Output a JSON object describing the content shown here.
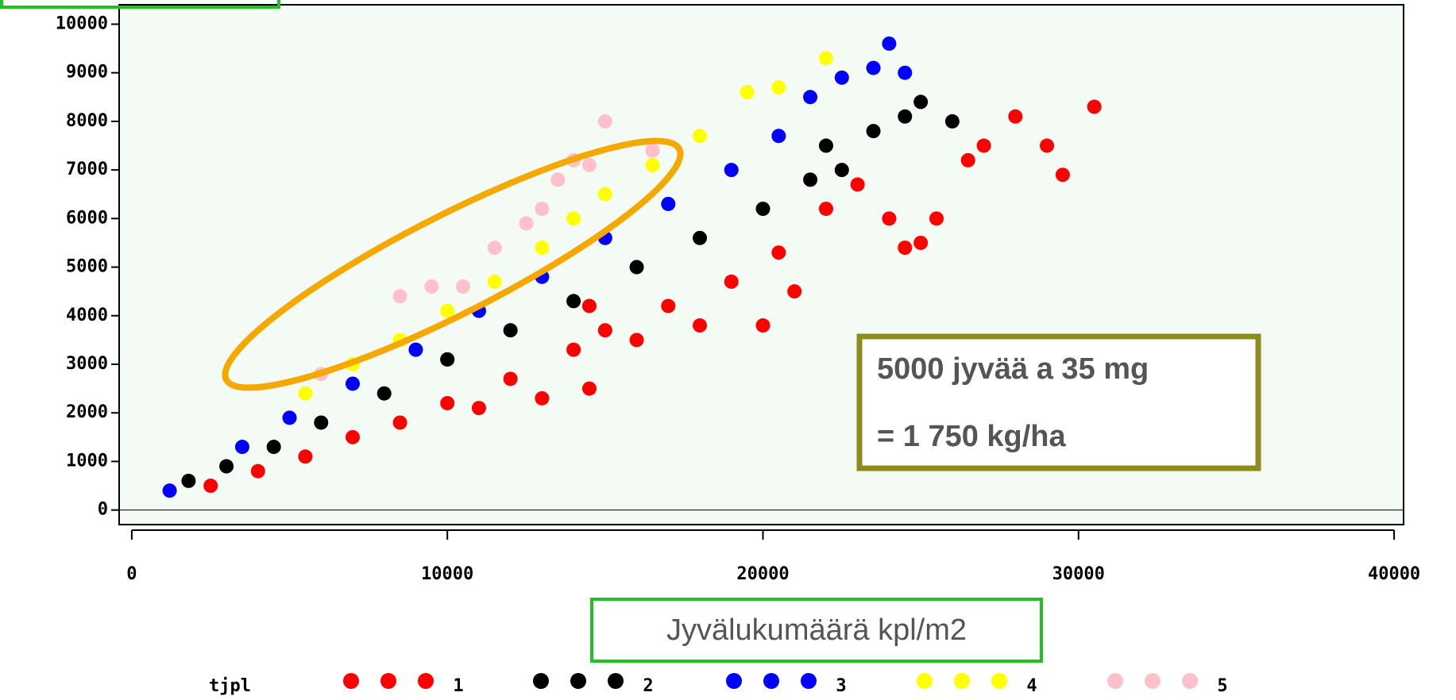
{
  "chart_data": {
    "type": "scatter",
    "x_label": "Jyvälukumäärä kpl/m2",
    "legend_title": "tjpl",
    "annotation": [
      "5000 jyvää a 35 mg",
      "= 1 750 kg/ha"
    ],
    "xlim": [
      -400,
      40300
    ],
    "ylim": [
      -300,
      10400
    ],
    "xticks": [
      0,
      10000,
      20000,
      30000,
      40000
    ],
    "yticks": [
      0,
      1000,
      2000,
      3000,
      4000,
      5000,
      6000,
      7000,
      8000,
      9000,
      10000
    ],
    "series": [
      {
        "name": "1",
        "color": "#ff0000",
        "x": [
          2500,
          4000,
          5500,
          7000,
          8500,
          10000,
          11000,
          12000,
          13000,
          14000,
          14500,
          15000,
          16000,
          17000,
          18000,
          19000,
          20000,
          20500,
          21000,
          22000,
          23000,
          24000,
          24500,
          25000,
          25500,
          26500,
          27000,
          28000,
          29000,
          29500,
          30500,
          14500,
          10000
        ],
        "values": [
          500,
          800,
          1100,
          1500,
          1800,
          2200,
          2100,
          2700,
          2300,
          3300,
          2500,
          3700,
          3500,
          4200,
          3800,
          4700,
          3800,
          5300,
          4500,
          6200,
          6700,
          6000,
          5400,
          5500,
          6000,
          7200,
          7500,
          8100,
          7500,
          6900,
          8300,
          4200,
          3100
        ]
      },
      {
        "name": "2",
        "color": "#000000",
        "x": [
          1800,
          3000,
          4500,
          6000,
          8000,
          10000,
          12000,
          14000,
          16000,
          18000,
          20000,
          21500,
          22500,
          23500,
          24500,
          25000,
          26000,
          22000
        ],
        "values": [
          600,
          900,
          1300,
          1800,
          2400,
          3100,
          3700,
          4300,
          5000,
          5600,
          6200,
          6800,
          7000,
          7800,
          8100,
          8400,
          8000,
          7500
        ]
      },
      {
        "name": "3",
        "color": "#0000ff",
        "x": [
          1200,
          3500,
          5000,
          7000,
          9000,
          11000,
          13000,
          15000,
          17000,
          19000,
          20500,
          21500,
          22500,
          23500,
          24000,
          24500
        ],
        "values": [
          400,
          1300,
          1900,
          2600,
          3300,
          4100,
          4800,
          5600,
          6300,
          7000,
          7700,
          8500,
          8900,
          9100,
          9600,
          9000
        ]
      },
      {
        "name": "4",
        "color": "#ffff00",
        "x": [
          5500,
          7000,
          8500,
          10000,
          11500,
          13000,
          14000,
          15000,
          16500,
          18000,
          19500,
          20500,
          22000
        ],
        "values": [
          2400,
          3000,
          3500,
          4100,
          4700,
          5400,
          6000,
          6500,
          7100,
          7700,
          8600,
          8700,
          9300
        ]
      },
      {
        "name": "5",
        "color": "#ffc0cb",
        "x": [
          6000,
          8500,
          9500,
          10500,
          11500,
          12500,
          13000,
          13500,
          14000,
          14500,
          15000,
          16500
        ],
        "values": [
          2800,
          4400,
          4600,
          4600,
          5400,
          5900,
          6200,
          6800,
          7200,
          7100,
          8000,
          7400
        ]
      }
    ]
  }
}
